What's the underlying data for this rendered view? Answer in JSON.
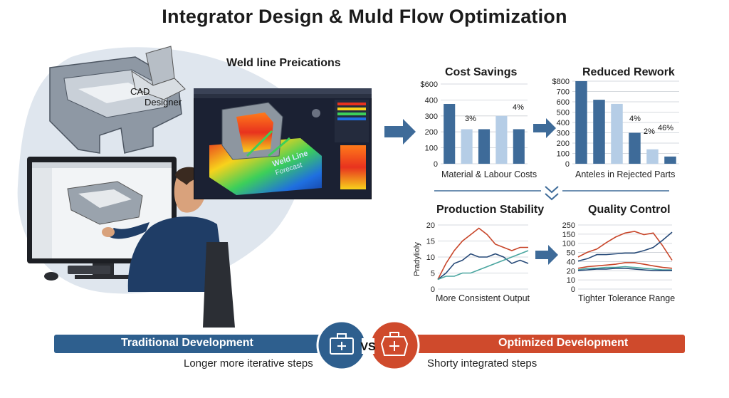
{
  "title": "Integrator Design & Muld Flow Optimization",
  "illustration": {
    "cad_label_1": "CAD",
    "cad_label_2": "Designer"
  },
  "simulation": {
    "title": "Weld line Preications",
    "overlay_text_1": "Weld Line",
    "overlay_text_2": "Forecast",
    "colors": {
      "hot": "#e8321e",
      "warm": "#f7d21c",
      "mid": "#3ccf5a",
      "cool": "#1f6fe0",
      "bg": "#1b2133"
    }
  },
  "charts": {
    "cost_savings": {
      "title": "Cost Savings",
      "caption": "Material & Labour Costs",
      "chart_data": {
        "type": "bar",
        "title": "Cost Savings",
        "xlabel": "Material & Labour Costs",
        "yticks": [
          "$600",
          "400",
          "300",
          "200",
          "100",
          "0"
        ],
        "ylim": [
          0,
          600
        ],
        "values": [
          450,
          260,
          260,
          360,
          260
        ],
        "annotations": [
          "3%",
          "4%"
        ],
        "colors": [
          "#3e6b99",
          "#b5cde6",
          "#3e6b99",
          "#b5cde6",
          "#3e6b99"
        ]
      }
    },
    "reduced_rework": {
      "title": "Reduced Rework",
      "caption": "Anteles in Rejected Parts",
      "chart_data": {
        "type": "bar",
        "title": "Reduced Rework",
        "xlabel": "Anteles in Rejected Parts",
        "yticks": [
          "$800",
          "700",
          "600",
          "500",
          "400",
          "300",
          "200",
          "100",
          "0"
        ],
        "ylim": [
          0,
          800
        ],
        "values": [
          800,
          620,
          580,
          300,
          140,
          70
        ],
        "annotations": [
          "4%",
          "2%",
          "46%"
        ],
        "colors": [
          "#3e6b99",
          "#3e6b99",
          "#b5cde6",
          "#3e6b99",
          "#b5cde6",
          "#3e6b99"
        ]
      }
    },
    "production_stability": {
      "title": "Production Stability",
      "caption": "More Consistent Output",
      "ylabel": "Pradylioly",
      "chart_data": {
        "type": "line",
        "title": "Production Stability",
        "xlabel": "More Consistent Output",
        "ylabel": "Pradylioly",
        "yticks": [
          "20",
          "15",
          "10",
          "5",
          "0"
        ],
        "ylim": [
          0,
          20
        ],
        "series": [
          {
            "color": "#c8462a",
            "values": [
              3,
              8,
              12,
              15,
              17,
              19,
              17,
              14,
              13,
              12,
              13,
              13
            ]
          },
          {
            "color": "#274a78",
            "values": [
              3,
              5,
              8,
              9,
              11,
              10,
              10,
              11,
              10,
              8,
              9,
              8
            ]
          },
          {
            "color": "#4aa6a0",
            "values": [
              3,
              4,
              4,
              5,
              5,
              6,
              7,
              8,
              9,
              10,
              11,
              12
            ]
          }
        ]
      }
    },
    "quality_control": {
      "title": "Quality Control",
      "caption": "Tighter Tolerance Range",
      "chart_data": {
        "type": "line",
        "title": "Quality Control",
        "xlabel": "Tighter Tolerance Range",
        "yticks": [
          "250",
          "150",
          "100",
          "50",
          "40",
          "20",
          "10",
          "0"
        ],
        "series": [
          {
            "color": "#c8462a",
            "values": [
              4,
              4.6,
              5,
              5.8,
              6.5,
              7,
              7.2,
              6.8,
              7,
              5.4,
              3.6
            ]
          },
          {
            "color": "#274a78",
            "values": [
              3.5,
              3.8,
              4.3,
              4.3,
              4.4,
              4.5,
              4.5,
              4.8,
              5.2,
              6.1,
              7.1
            ]
          },
          {
            "color": "#c8462a",
            "values": [
              2.6,
              2.8,
              2.9,
              3,
              3.1,
              3.3,
              3.3,
              3.1,
              2.9,
              2.7,
              2.6
            ]
          },
          {
            "color": "#4aa6a0",
            "values": [
              2.4,
              2.6,
              2.6,
              2.7,
              2.7,
              2.8,
              2.7,
              2.6,
              2.5,
              2.4,
              2.4
            ]
          },
          {
            "color": "#274a78",
            "values": [
              2.3,
              2.4,
              2.5,
              2.5,
              2.6,
              2.6,
              2.5,
              2.4,
              2.3,
              2.3,
              2.3
            ]
          }
        ]
      }
    }
  },
  "comparison": {
    "left_label": "Traditional Development",
    "left_sub": "Longer more iterative steps",
    "vs": "VS",
    "right_label": "Optimized Development",
    "right_sub": "Shorty integrated steps",
    "left_color": "#2e5f8e",
    "right_color": "#cf4a2c"
  }
}
